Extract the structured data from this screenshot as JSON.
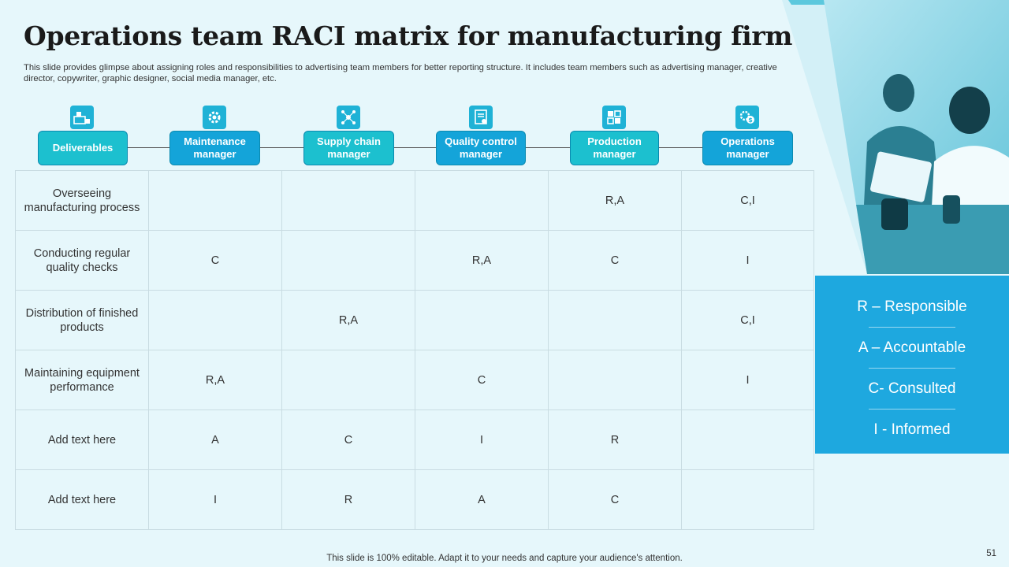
{
  "slide": {
    "title": "Operations team RACI matrix for manufacturing firm",
    "subtitle": "This slide provides glimpse about assigning roles and responsibilities to advertising team members for better reporting structure. It includes team members such as advertising manager, creative director, copywriter, graphic designer, social media manager, etc.",
    "footer": "This slide is 100% editable. Adapt it to your needs and capture your audience's attention.",
    "page_number": "51"
  },
  "headers": [
    {
      "label": "Deliverables",
      "icon": "deliverables-icon"
    },
    {
      "label": "Maintenance manager",
      "icon": "maintenance-gear-icon"
    },
    {
      "label": "Supply chain manager",
      "icon": "supply-chain-network-icon"
    },
    {
      "label": "Quality control manager",
      "icon": "quality-certificate-icon"
    },
    {
      "label": "Production manager",
      "icon": "production-puzzle-icon"
    },
    {
      "label": "Operations manager",
      "icon": "operations-gear-dollar-icon"
    }
  ],
  "rows": [
    {
      "deliverable": "Overseeing manufacturing process",
      "cells": [
        "",
        "",
        "",
        "R,A",
        "C,I"
      ]
    },
    {
      "deliverable": "Conducting regular quality checks",
      "cells": [
        "C",
        "",
        "R,A",
        "C",
        "I"
      ]
    },
    {
      "deliverable": "Distribution of finished products",
      "cells": [
        "",
        "R,A",
        "",
        "",
        "C,I"
      ]
    },
    {
      "deliverable": "Maintaining equipment performance",
      "cells": [
        "R,A",
        "",
        "C",
        "",
        "I"
      ]
    },
    {
      "deliverable": "Add text here",
      "cells": [
        "A",
        "C",
        "I",
        "R",
        ""
      ]
    },
    {
      "deliverable": "Add text here",
      "cells": [
        "I",
        "R",
        "A",
        "C",
        ""
      ]
    }
  ],
  "legend": [
    {
      "text": "R – Responsible"
    },
    {
      "text": "A – Accountable"
    },
    {
      "text": "C- Consulted"
    },
    {
      "text": "I - Informed"
    }
  ],
  "colors": {
    "background": "#e6f7fb",
    "teal_header": "#1cc0cf",
    "blue_header": "#14a4d9",
    "legend_bg": "#1ea8df",
    "icon_tile": "#1fb2d6"
  }
}
